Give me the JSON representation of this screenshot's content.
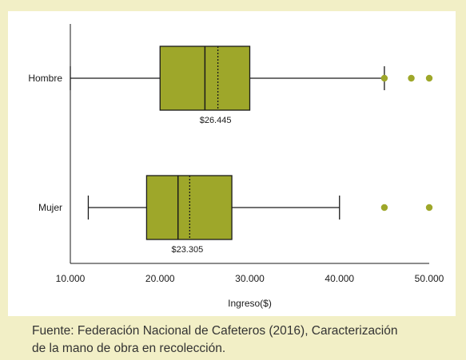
{
  "chart_data": {
    "type": "boxplot",
    "title": "",
    "xlabel": "Ingreso($)",
    "ylabel": "",
    "xlim": [
      10000,
      50000
    ],
    "x_ticks": [
      10000,
      20000,
      30000,
      40000,
      50000
    ],
    "x_tick_labels": [
      "10.000",
      "20.000",
      "30.000",
      "40.000",
      "50.000"
    ],
    "grid": false,
    "categories": [
      "Hombre",
      "Mujer"
    ],
    "series": [
      {
        "category": "Hombre",
        "whisker_low": 10000,
        "q1": 20000,
        "median": 25000,
        "q3": 30000,
        "whisker_high": 45000,
        "mean": 26445,
        "mean_label": "$26.445",
        "outliers": [
          45000,
          48000,
          50000
        ]
      },
      {
        "category": "Mujer",
        "whisker_low": 12000,
        "q1": 18500,
        "median": 22000,
        "q3": 28000,
        "whisker_high": 40000,
        "mean": 23305,
        "mean_label": "$23.305",
        "outliers": [
          45000,
          50000
        ]
      }
    ],
    "colors": {
      "box": "#9ea72a",
      "outlier": "#9ea72a",
      "line": "#1a1a1a"
    }
  },
  "caption": {
    "line1": "Fuente: Federación Nacional de Cafeteros (2016), Caracterización",
    "line2": "de la mano de obra en recolección."
  }
}
